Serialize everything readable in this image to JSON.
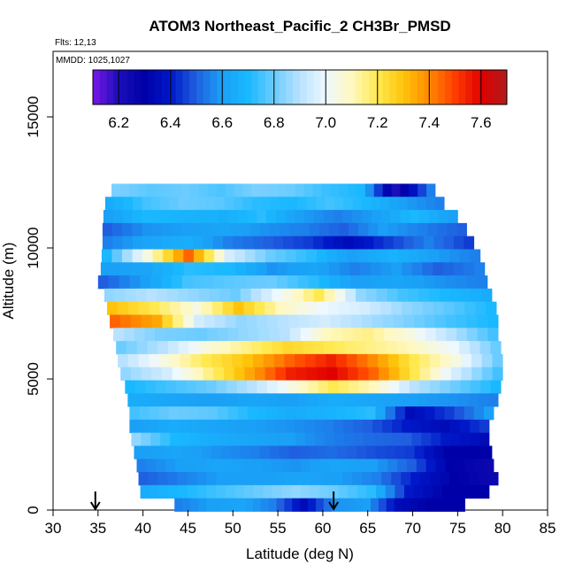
{
  "chart_data": {
    "type": "heatmap",
    "title": "ATOM3 Northeast_Pacific_2 CH3Br_PMSD",
    "annotations": [
      "Flts: 12,13",
      "MMDD: 1025,1027"
    ],
    "xlabel": "Latitude (deg N)",
    "ylabel": "Altitude (m)",
    "xlim": [
      30,
      85
    ],
    "ylim": [
      0,
      17500
    ],
    "x_ticks": [
      "30",
      "35",
      "40",
      "45",
      "50",
      "55",
      "60",
      "65",
      "70",
      "75",
      "80",
      "85"
    ],
    "y_ticks": [
      "0",
      "5000",
      "10000",
      "15000"
    ],
    "colorbar": {
      "range": [
        6.1,
        7.7
      ],
      "ticks": [
        "6.2",
        "6.4",
        "6.6",
        "6.8",
        "7.0",
        "7.2",
        "7.4",
        "7.6"
      ],
      "palette": [
        "#7a16e6",
        "#1a0fb8",
        "#0000a8",
        "#0018c8",
        "#1f5fe0",
        "#1aa0f6",
        "#19b8ff",
        "#6cccff",
        "#b8e2ff",
        "#eef8ff",
        "#fff8c0",
        "#ffe94f",
        "#ffc40a",
        "#ff8a00",
        "#ff3d00",
        "#e00000",
        "#b01a1a"
      ]
    },
    "flight_markers_latitude": [
      34.7,
      61.2
    ],
    "grid": false,
    "rows": [
      {
        "alt": 12200,
        "lat_min": 36.5,
        "lat_max": 72.5,
        "values": [
          6.82,
          6.78,
          6.8,
          6.76,
          6.82,
          6.8,
          6.74,
          6.7,
          6.2,
          6.55
        ]
      },
      {
        "alt": 11700,
        "lat_min": 35.8,
        "lat_max": 73.5,
        "values": [
          6.65,
          6.75,
          6.8,
          6.78,
          6.72,
          6.7,
          6.75,
          6.7,
          6.6,
          6.55
        ]
      },
      {
        "alt": 11200,
        "lat_min": 35.6,
        "lat_max": 75.0,
        "values": [
          6.6,
          6.7,
          6.68,
          6.66,
          6.72,
          6.6,
          6.55,
          6.6,
          6.7,
          6.6
        ]
      },
      {
        "alt": 10700,
        "lat_min": 35.5,
        "lat_max": 76.0,
        "values": [
          6.5,
          6.58,
          6.6,
          6.62,
          6.58,
          6.55,
          6.5,
          6.6,
          6.55,
          6.5
        ]
      },
      {
        "alt": 10200,
        "lat_min": 35.5,
        "lat_max": 76.8,
        "values": [
          6.55,
          6.62,
          6.66,
          6.55,
          6.5,
          6.45,
          6.35,
          6.45,
          6.55,
          6.45
        ]
      },
      {
        "alt": 9700,
        "lat_min": 35.4,
        "lat_max": 77.5,
        "values": [
          6.7,
          7.05,
          7.45,
          6.95,
          6.8,
          6.72,
          6.6,
          6.68,
          6.6,
          6.55
        ]
      },
      {
        "alt": 9200,
        "lat_min": 35.3,
        "lat_max": 78.0,
        "values": [
          6.6,
          6.62,
          6.72,
          6.7,
          6.58,
          6.62,
          6.55,
          6.6,
          6.5,
          6.55
        ]
      },
      {
        "alt": 8700,
        "lat_min": 35.0,
        "lat_max": 78.3,
        "values": [
          6.5,
          6.6,
          6.75,
          6.78,
          6.8,
          6.72,
          6.6,
          6.62,
          6.58,
          6.55
        ]
      },
      {
        "alt": 8200,
        "lat_min": 35.7,
        "lat_max": 78.8,
        "values": [
          6.85,
          6.9,
          6.85,
          6.8,
          7.0,
          7.2,
          6.85,
          6.75,
          6.7,
          6.65
        ]
      },
      {
        "alt": 7700,
        "lat_min": 36.0,
        "lat_max": 79.3,
        "values": [
          7.3,
          7.2,
          7.05,
          7.3,
          7.1,
          7.0,
          6.95,
          6.85,
          6.78,
          6.7
        ]
      },
      {
        "alt": 7200,
        "lat_min": 36.3,
        "lat_max": 79.5,
        "values": [
          7.45,
          7.35,
          6.95,
          6.85,
          6.9,
          6.95,
          6.88,
          6.82,
          6.75,
          6.7
        ]
      },
      {
        "alt": 6700,
        "lat_min": 36.7,
        "lat_max": 79.5,
        "values": [
          6.9,
          6.82,
          6.8,
          6.85,
          6.9,
          7.1,
          7.15,
          7.05,
          6.9,
          6.75
        ]
      },
      {
        "alt": 6200,
        "lat_min": 37.0,
        "lat_max": 79.8,
        "values": [
          6.8,
          6.9,
          7.05,
          7.15,
          7.25,
          7.2,
          7.15,
          7.1,
          7.0,
          6.8
        ]
      },
      {
        "alt": 5700,
        "lat_min": 37.2,
        "lat_max": 80.0,
        "values": [
          6.9,
          7.05,
          7.2,
          7.3,
          7.45,
          7.55,
          7.4,
          7.2,
          7.05,
          6.8
        ]
      },
      {
        "alt": 5200,
        "lat_min": 37.5,
        "lat_max": 80.0,
        "values": [
          6.85,
          6.95,
          7.15,
          7.35,
          7.55,
          7.6,
          7.45,
          7.2,
          6.95,
          6.75
        ]
      },
      {
        "alt": 4700,
        "lat_min": 38.0,
        "lat_max": 79.8,
        "values": [
          6.7,
          6.75,
          6.8,
          6.9,
          7.05,
          7.2,
          7.1,
          6.9,
          6.8,
          6.7
        ]
      },
      {
        "alt": 4200,
        "lat_min": 38.3,
        "lat_max": 79.5,
        "values": [
          6.65,
          6.62,
          6.6,
          6.62,
          6.6,
          6.65,
          6.62,
          6.6,
          6.58,
          6.55
        ]
      },
      {
        "alt": 3700,
        "lat_min": 38.5,
        "lat_max": 79.0,
        "values": [
          6.75,
          6.8,
          6.78,
          6.7,
          6.65,
          6.68,
          6.72,
          6.35,
          6.45,
          6.6
        ]
      },
      {
        "alt": 3200,
        "lat_min": 38.5,
        "lat_max": 78.5,
        "values": [
          6.6,
          6.65,
          6.62,
          6.6,
          6.58,
          6.55,
          6.5,
          6.4,
          6.35,
          6.45
        ]
      },
      {
        "alt": 2700,
        "lat_min": 38.7,
        "lat_max": 78.5,
        "values": [
          6.85,
          6.7,
          6.65,
          6.62,
          6.6,
          6.55,
          6.52,
          6.5,
          6.4,
          6.35
        ]
      },
      {
        "alt": 2200,
        "lat_min": 39.0,
        "lat_max": 78.8,
        "values": [
          6.6,
          6.62,
          6.58,
          6.55,
          6.5,
          6.52,
          6.48,
          6.45,
          6.3,
          6.3
        ]
      },
      {
        "alt": 1700,
        "lat_min": 39.3,
        "lat_max": 79.0,
        "values": [
          6.55,
          6.6,
          6.62,
          6.6,
          6.58,
          6.62,
          6.6,
          6.5,
          6.3,
          6.25
        ]
      },
      {
        "alt": 1200,
        "lat_min": 39.5,
        "lat_max": 79.5,
        "values": [
          6.5,
          6.55,
          6.6,
          6.6,
          6.62,
          6.6,
          6.55,
          6.4,
          6.3,
          6.25
        ]
      },
      {
        "alt": 700,
        "lat_min": 39.7,
        "lat_max": 78.5,
        "values": [
          6.65,
          6.7,
          6.75,
          6.8,
          6.85,
          6.8,
          6.72,
          6.4,
          6.3,
          6.3
        ]
      },
      {
        "alt": 200,
        "lat_min": 43.5,
        "lat_max": 75.8,
        "values": [
          6.55,
          6.6,
          6.62,
          6.55,
          6.35,
          6.58,
          6.6,
          6.35,
          6.3,
          6.3
        ]
      }
    ]
  }
}
